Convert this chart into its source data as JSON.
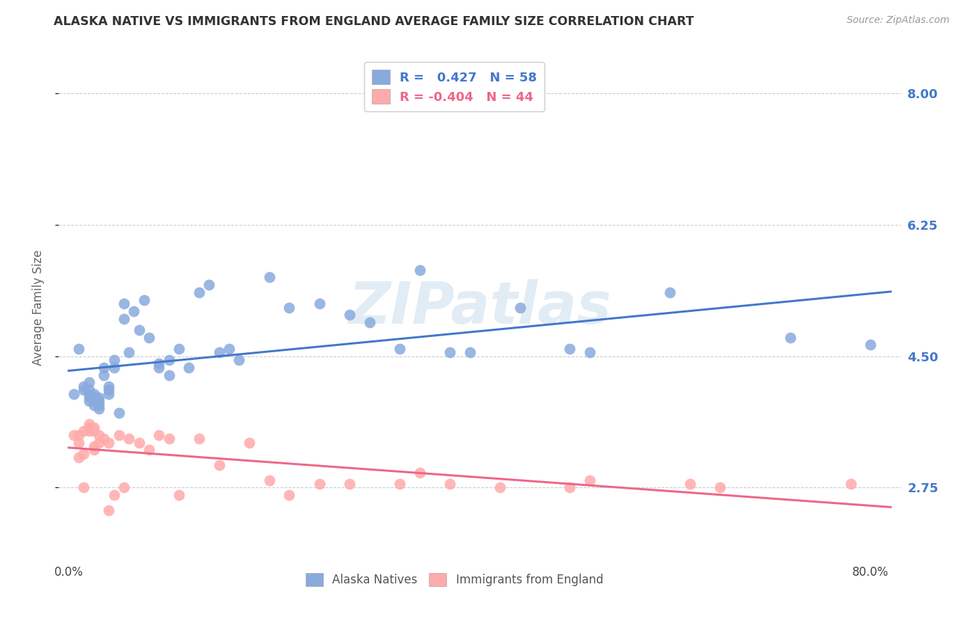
{
  "title": "ALASKA NATIVE VS IMMIGRANTS FROM ENGLAND AVERAGE FAMILY SIZE CORRELATION CHART",
  "source": "Source: ZipAtlas.com",
  "ylabel": "Average Family Size",
  "background_color": "#ffffff",
  "grid_color": "#cccccc",
  "blue_color": "#88aadd",
  "pink_color": "#ffaaaa",
  "blue_line_color": "#4477cc",
  "pink_line_color": "#ee6688",
  "R_blue": 0.427,
  "N_blue": 58,
  "R_pink": -0.404,
  "N_pink": 44,
  "legend_label_blue": "Alaska Natives",
  "legend_label_pink": "Immigrants from England",
  "watermark": "ZIPatlas",
  "ylim": [
    1.8,
    8.5
  ],
  "xlim": [
    -0.01,
    0.83
  ],
  "yticks": [
    2.75,
    4.5,
    6.25,
    8.0
  ],
  "ytick_labels": [
    "2.75",
    "4.50",
    "6.25",
    "8.00"
  ],
  "xtick_positions": [
    0.0,
    0.1,
    0.2,
    0.3,
    0.4,
    0.5,
    0.6,
    0.7,
    0.8
  ],
  "xtick_labels": [
    "0.0%",
    "",
    "",
    "",
    "",
    "",
    "",
    "",
    "80.0%"
  ],
  "blue_scatter_x": [
    0.005,
    0.01,
    0.015,
    0.015,
    0.02,
    0.02,
    0.02,
    0.02,
    0.02,
    0.025,
    0.025,
    0.025,
    0.025,
    0.03,
    0.03,
    0.03,
    0.03,
    0.035,
    0.035,
    0.04,
    0.04,
    0.04,
    0.045,
    0.045,
    0.05,
    0.055,
    0.055,
    0.06,
    0.065,
    0.07,
    0.075,
    0.08,
    0.09,
    0.09,
    0.1,
    0.1,
    0.11,
    0.12,
    0.13,
    0.14,
    0.15,
    0.16,
    0.17,
    0.2,
    0.22,
    0.25,
    0.28,
    0.3,
    0.33,
    0.35,
    0.38,
    0.4,
    0.45,
    0.5,
    0.52,
    0.6,
    0.72,
    0.8
  ],
  "blue_scatter_y": [
    4.0,
    4.6,
    4.05,
    4.1,
    3.9,
    3.95,
    4.0,
    4.05,
    4.15,
    3.85,
    3.9,
    3.95,
    4.0,
    3.8,
    3.85,
    3.9,
    3.95,
    4.25,
    4.35,
    4.0,
    4.05,
    4.1,
    4.35,
    4.45,
    3.75,
    5.0,
    5.2,
    4.55,
    5.1,
    4.85,
    5.25,
    4.75,
    4.35,
    4.4,
    4.25,
    4.45,
    4.6,
    4.35,
    5.35,
    5.45,
    4.55,
    4.6,
    4.45,
    5.55,
    5.15,
    5.2,
    5.05,
    4.95,
    4.6,
    5.65,
    4.55,
    4.55,
    5.15,
    4.6,
    4.55,
    5.35,
    4.75,
    4.65
  ],
  "pink_scatter_x": [
    0.005,
    0.01,
    0.01,
    0.01,
    0.015,
    0.015,
    0.015,
    0.02,
    0.02,
    0.02,
    0.025,
    0.025,
    0.025,
    0.025,
    0.03,
    0.03,
    0.035,
    0.04,
    0.04,
    0.045,
    0.05,
    0.055,
    0.06,
    0.07,
    0.08,
    0.09,
    0.1,
    0.11,
    0.13,
    0.15,
    0.18,
    0.2,
    0.22,
    0.25,
    0.28,
    0.33,
    0.35,
    0.38,
    0.43,
    0.5,
    0.52,
    0.62,
    0.65,
    0.78
  ],
  "pink_scatter_y": [
    3.45,
    3.35,
    3.15,
    3.45,
    3.2,
    3.5,
    2.75,
    3.6,
    3.55,
    3.5,
    3.25,
    3.3,
    3.5,
    3.55,
    3.35,
    3.45,
    3.4,
    2.45,
    3.35,
    2.65,
    3.45,
    2.75,
    3.4,
    3.35,
    3.25,
    3.45,
    3.4,
    2.65,
    3.4,
    3.05,
    3.35,
    2.85,
    2.65,
    2.8,
    2.8,
    2.8,
    2.95,
    2.8,
    2.75,
    2.75,
    2.85,
    2.8,
    2.75,
    2.8
  ]
}
